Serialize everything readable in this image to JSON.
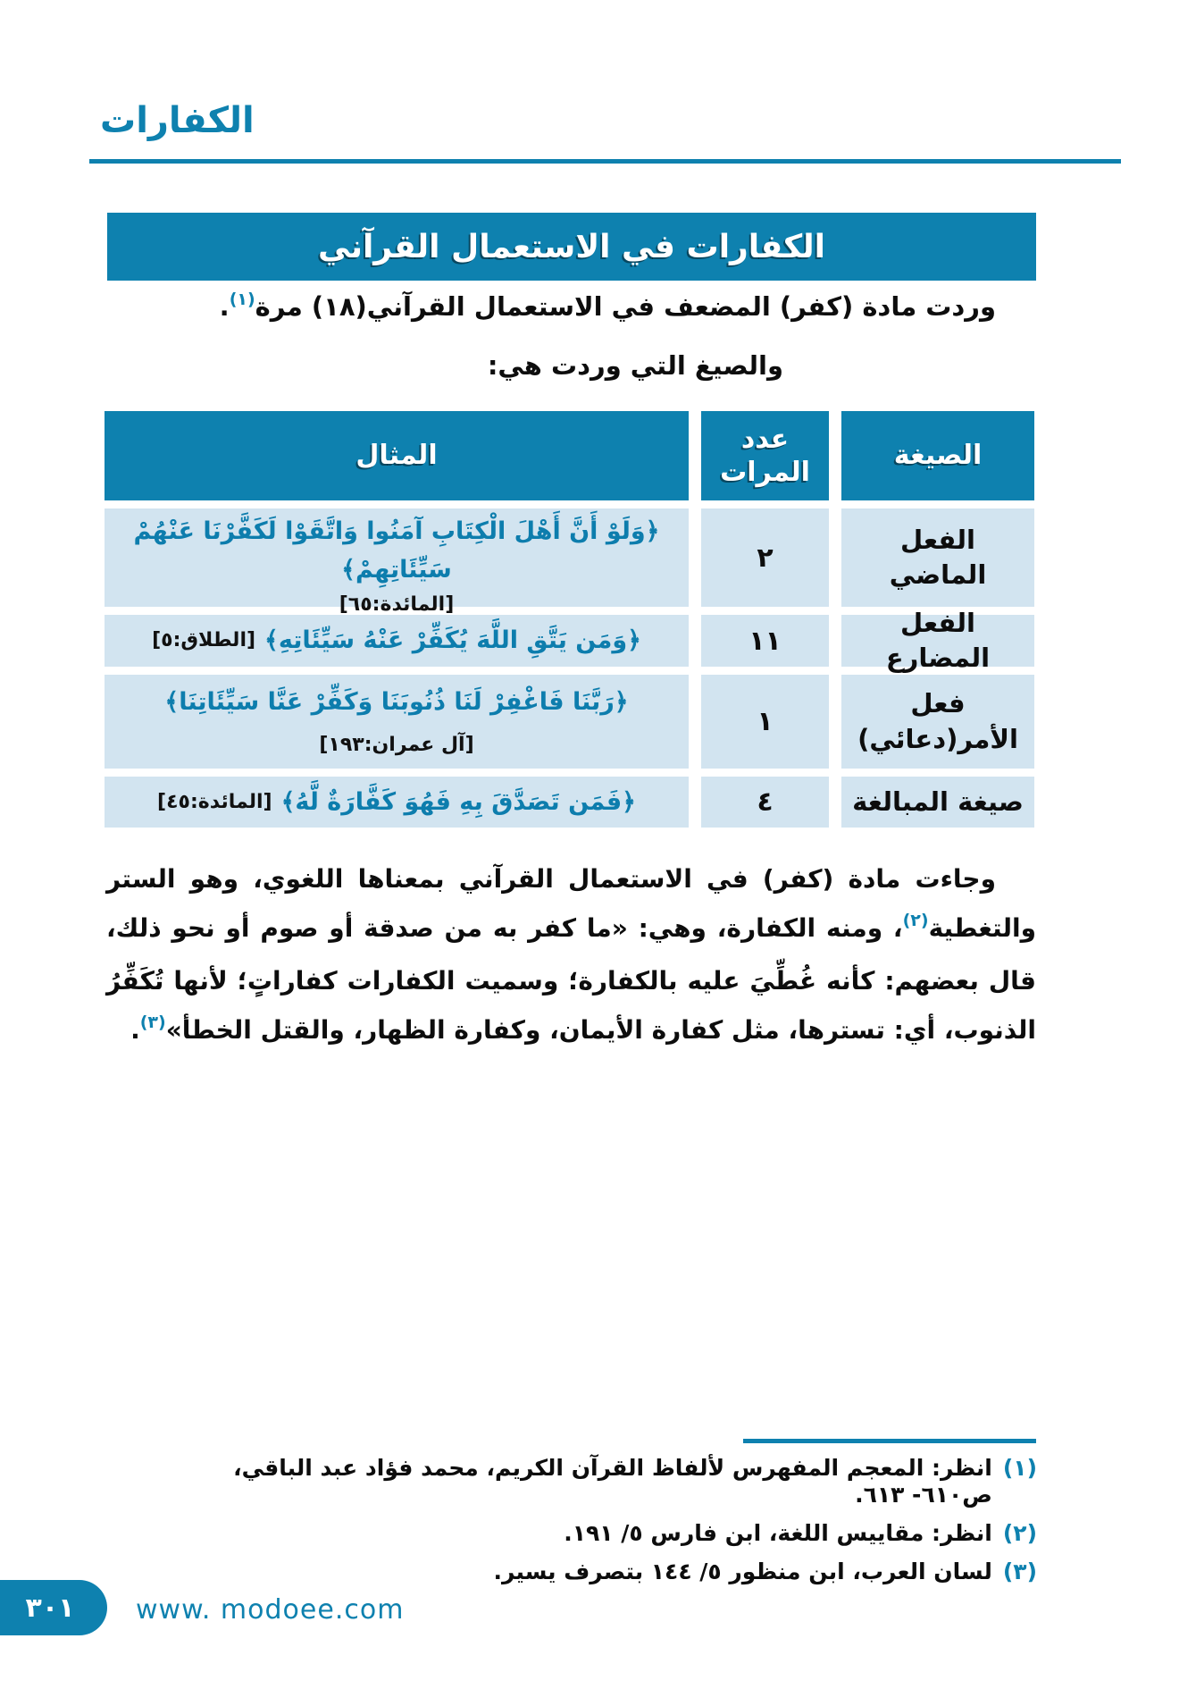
{
  "colors": {
    "accent": "#0e81af",
    "table_row_bg": "#d2e4f0",
    "verse_blue": "#0d7dad",
    "header_text": "#ffffff"
  },
  "page": {
    "running_head": "الكفارات",
    "footer": {
      "page_number": "٣٠١",
      "website": "www. modoee.com"
    }
  },
  "title_bar": {
    "label": "الكفارات في الاستعمال القرآني"
  },
  "intro": {
    "line1_text": "وردت مادة (كفر) المضعف في الاستعمال القرآني(١٨) مرة",
    "line1_marker": "(١)",
    "line1_period": ".",
    "line2_text": "والصيغ التي وردت هي:"
  },
  "table": {
    "header": {
      "example": "المثال",
      "count": "عدد المرات",
      "form": "الصيغة"
    },
    "rows": [
      {
        "form": "الفعل الماضي",
        "count": "٢",
        "verse": "﴿وَلَوْ أَنَّ أَهْلَ الْكِتَابِ آمَنُوا وَاتَّقَوْا لَكَفَّرْنَا عَنْهُمْ سَيِّئَاتِهِمْ﴾",
        "ref": "[المائدة:٦٥]"
      },
      {
        "form": "الفعل المضارع",
        "count": "١١",
        "verse": "﴿وَمَن يَتَّقِ اللَّهَ يُكَفِّرْ عَنْهُ سَيِّئَاتِهِ﴾",
        "ref": "[الطلاق:٥]"
      },
      {
        "form": "فعل الأمر(دعائي)",
        "count": "١",
        "verse": "﴿رَبَّنَا فَاغْفِرْ لَنَا ذُنُوبَنَا وَكَفِّرْ عَنَّا سَيِّئَاتِنَا﴾",
        "ref": "[آل عمران:١٩٣]"
      },
      {
        "form": "صيغة المبالغة",
        "count": "٤",
        "verse": "﴿فَمَن تَصَدَّقَ بِهِ فَهُوَ كَفَّارَةٌ لَّهُ﴾",
        "ref": "[المائدة:٤٥]"
      }
    ]
  },
  "paragraph": {
    "part1": "وجاءت مادة (كفر) في الاستعمال القرآني بمعناها اللغوي، وهو الستر والتغطية",
    "marker2": "(٢)",
    "part2": "، ومنه الكفارة، وهي: «ما كفر به من صدقة أو صوم أو نحو ذلك، قال بعضهم: كأنه غُطِّيَ عليه بالكفارة؛ وسميت الكفارات كفاراتٍ؛ لأنها تُكَفِّرُ الذنوب، أي: تسترها، مثل كفارة الأيمان، وكفارة الظهار، والقتل الخطأ»",
    "marker3": "(٣)",
    "part3": "."
  },
  "footnotes": [
    {
      "marker": "(١)",
      "text": "انظر: المعجم المفهرس لألفاظ القرآن الكريم، محمد فؤاد عبد الباقي، ص٦١٠- ٦١٣."
    },
    {
      "marker": "(٢)",
      "text": "انظر: مقاييس اللغة، ابن فارس ٥/ ١٩١."
    },
    {
      "marker": "(٣)",
      "text": "لسان العرب، ابن منظور ٥/ ١٤٤ بتصرف يسير."
    }
  ]
}
